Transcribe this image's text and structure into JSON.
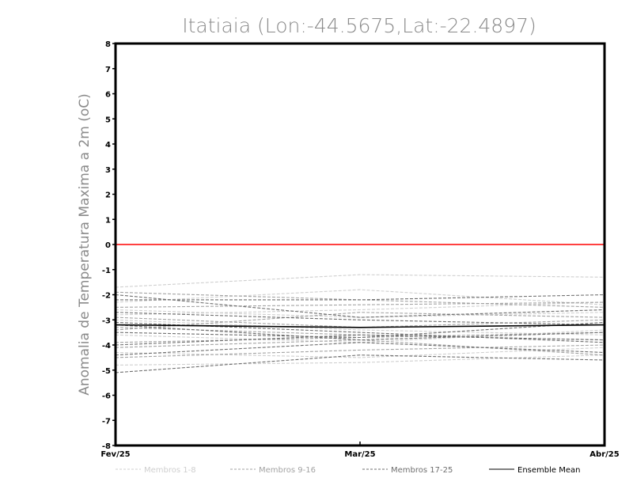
{
  "chart_data": {
    "type": "line",
    "title": "Itatiaia (Lon:-44.5675,Lat:-22.4897)",
    "xlabel": "",
    "ylabel": "Anomalia de Temperatura Maxima a 2m (oC)",
    "categories": [
      "Fev/25",
      "Mar/25",
      "Abr/25"
    ],
    "ylim": [
      -8,
      8
    ],
    "yticks": [
      "8",
      "7",
      "6",
      "5",
      "4",
      "3",
      "2",
      "1",
      "0",
      "-1",
      "-2",
      "-3",
      "-4",
      "-5",
      "-6",
      "-7",
      "-8"
    ],
    "reference_line": {
      "y": 0,
      "color": "#ff0000"
    },
    "series": [
      {
        "group": "Membros 1-8",
        "values": [
          -1.7,
          -1.2,
          -1.3
        ]
      },
      {
        "group": "Membros 1-8",
        "values": [
          -2.3,
          -1.8,
          -2.4
        ]
      },
      {
        "group": "Membros 1-8",
        "values": [
          -2.8,
          -2.6,
          -2.3
        ]
      },
      {
        "group": "Membros 1-8",
        "values": [
          -3.0,
          -3.4,
          -3.6
        ]
      },
      {
        "group": "Membros 1-8",
        "values": [
          -3.6,
          -3.9,
          -3.4
        ]
      },
      {
        "group": "Membros 1-8",
        "values": [
          -4.3,
          -4.5,
          -4.1
        ]
      },
      {
        "group": "Membros 1-8",
        "values": [
          -4.8,
          -4.7,
          -4.4
        ]
      },
      {
        "group": "Membros 1-8",
        "values": [
          -2.6,
          -2.9,
          -2.7
        ]
      },
      {
        "group": "Membros 9-16",
        "values": [
          -1.9,
          -2.2,
          -2.5
        ]
      },
      {
        "group": "Membros 9-16",
        "values": [
          -2.5,
          -2.4,
          -2.3
        ]
      },
      {
        "group": "Membros 9-16",
        "values": [
          -3.3,
          -3.6,
          -3.8
        ]
      },
      {
        "group": "Membros 9-16",
        "values": [
          -3.9,
          -3.7,
          -3.5
        ]
      },
      {
        "group": "Membros 9-16",
        "values": [
          -4.5,
          -4.2,
          -4.0
        ]
      },
      {
        "group": "Membros 9-16",
        "values": [
          -3.4,
          -2.7,
          -2.9
        ]
      },
      {
        "group": "Membros 9-16",
        "values": [
          -2.9,
          -3.3,
          -3.0
        ]
      },
      {
        "group": "Membros 9-16",
        "values": [
          -4.1,
          -3.8,
          -4.4
        ]
      },
      {
        "group": "Membros 17-25",
        "values": [
          -2.0,
          -2.9,
          -2.6
        ]
      },
      {
        "group": "Membros 17-25",
        "values": [
          -2.2,
          -2.2,
          -2.0
        ]
      },
      {
        "group": "Membros 17-25",
        "values": [
          -2.7,
          -3.0,
          -3.2
        ]
      },
      {
        "group": "Membros 17-25",
        "values": [
          -3.1,
          -3.5,
          -3.9
        ]
      },
      {
        "group": "Membros 17-25",
        "values": [
          -3.5,
          -3.7,
          -3.1
        ]
      },
      {
        "group": "Membros 17-25",
        "values": [
          -4.0,
          -3.6,
          -3.8
        ]
      },
      {
        "group": "Membros 17-25",
        "values": [
          -4.4,
          -3.9,
          -4.3
        ]
      },
      {
        "group": "Membros 17-25",
        "values": [
          -5.1,
          -4.4,
          -4.6
        ]
      },
      {
        "group": "Membros 17-25",
        "values": [
          -3.2,
          -3.8,
          -3.5
        ]
      },
      {
        "group": "Ensemble Mean",
        "values": [
          -3.2,
          -3.3,
          -3.2
        ]
      }
    ],
    "legend": {
      "placement": "bottom",
      "entries": [
        {
          "label": "Membros 1-8",
          "color": "#cfcfcf",
          "dash": "dashed"
        },
        {
          "label": "Membros 9-16",
          "color": "#a3a3a3",
          "dash": "dashed"
        },
        {
          "label": "Membros 17-25",
          "color": "#6f6f6f",
          "dash": "dashed"
        },
        {
          "label": "Ensemble Mean",
          "color": "#000000",
          "dash": "solid"
        }
      ]
    },
    "grid": false
  }
}
